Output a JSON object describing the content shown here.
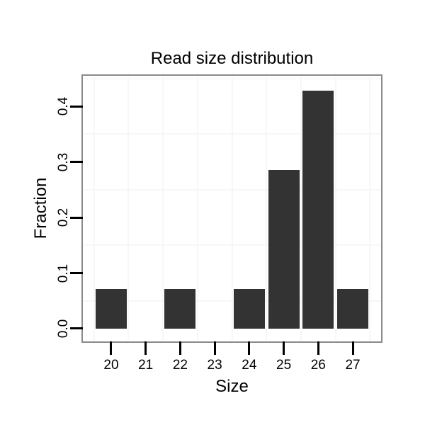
{
  "chart_data": {
    "type": "bar",
    "title": "Read size distribution",
    "xlabel": "Size",
    "ylabel": "Fraction",
    "categories": [
      20,
      21,
      22,
      23,
      24,
      25,
      26,
      27
    ],
    "values": [
      0.0714,
      0,
      0.0714,
      0,
      0.0714,
      0.2857,
      0.4286,
      0.0714
    ],
    "x_tick_labels": [
      "20",
      "21",
      "22",
      "23",
      "24",
      "25",
      "26",
      "27"
    ],
    "y_tick_labels": [
      "0.0",
      "0.1",
      "0.2",
      "0.3",
      "0.4"
    ],
    "y_tick_values": [
      0.0,
      0.1,
      0.2,
      0.3,
      0.4
    ],
    "xlim": [
      19.18,
      27.82
    ],
    "ylim": [
      -0.023,
      0.455
    ],
    "bar_width": 0.9,
    "grid": {
      "style": "minor only",
      "minor_x": [
        19.5,
        20.5,
        21.5,
        22.5,
        23.5,
        24.5,
        25.5,
        26.5,
        27.5
      ],
      "minor_y": [
        0.05,
        0.15,
        0.25,
        0.35,
        0.45
      ]
    },
    "legend": "none",
    "colors": {
      "bar": "#333333",
      "panel_border": "#8a8a8a",
      "gridline": "#f7f7f7",
      "text": "#000000",
      "background": "#ffffff"
    }
  }
}
